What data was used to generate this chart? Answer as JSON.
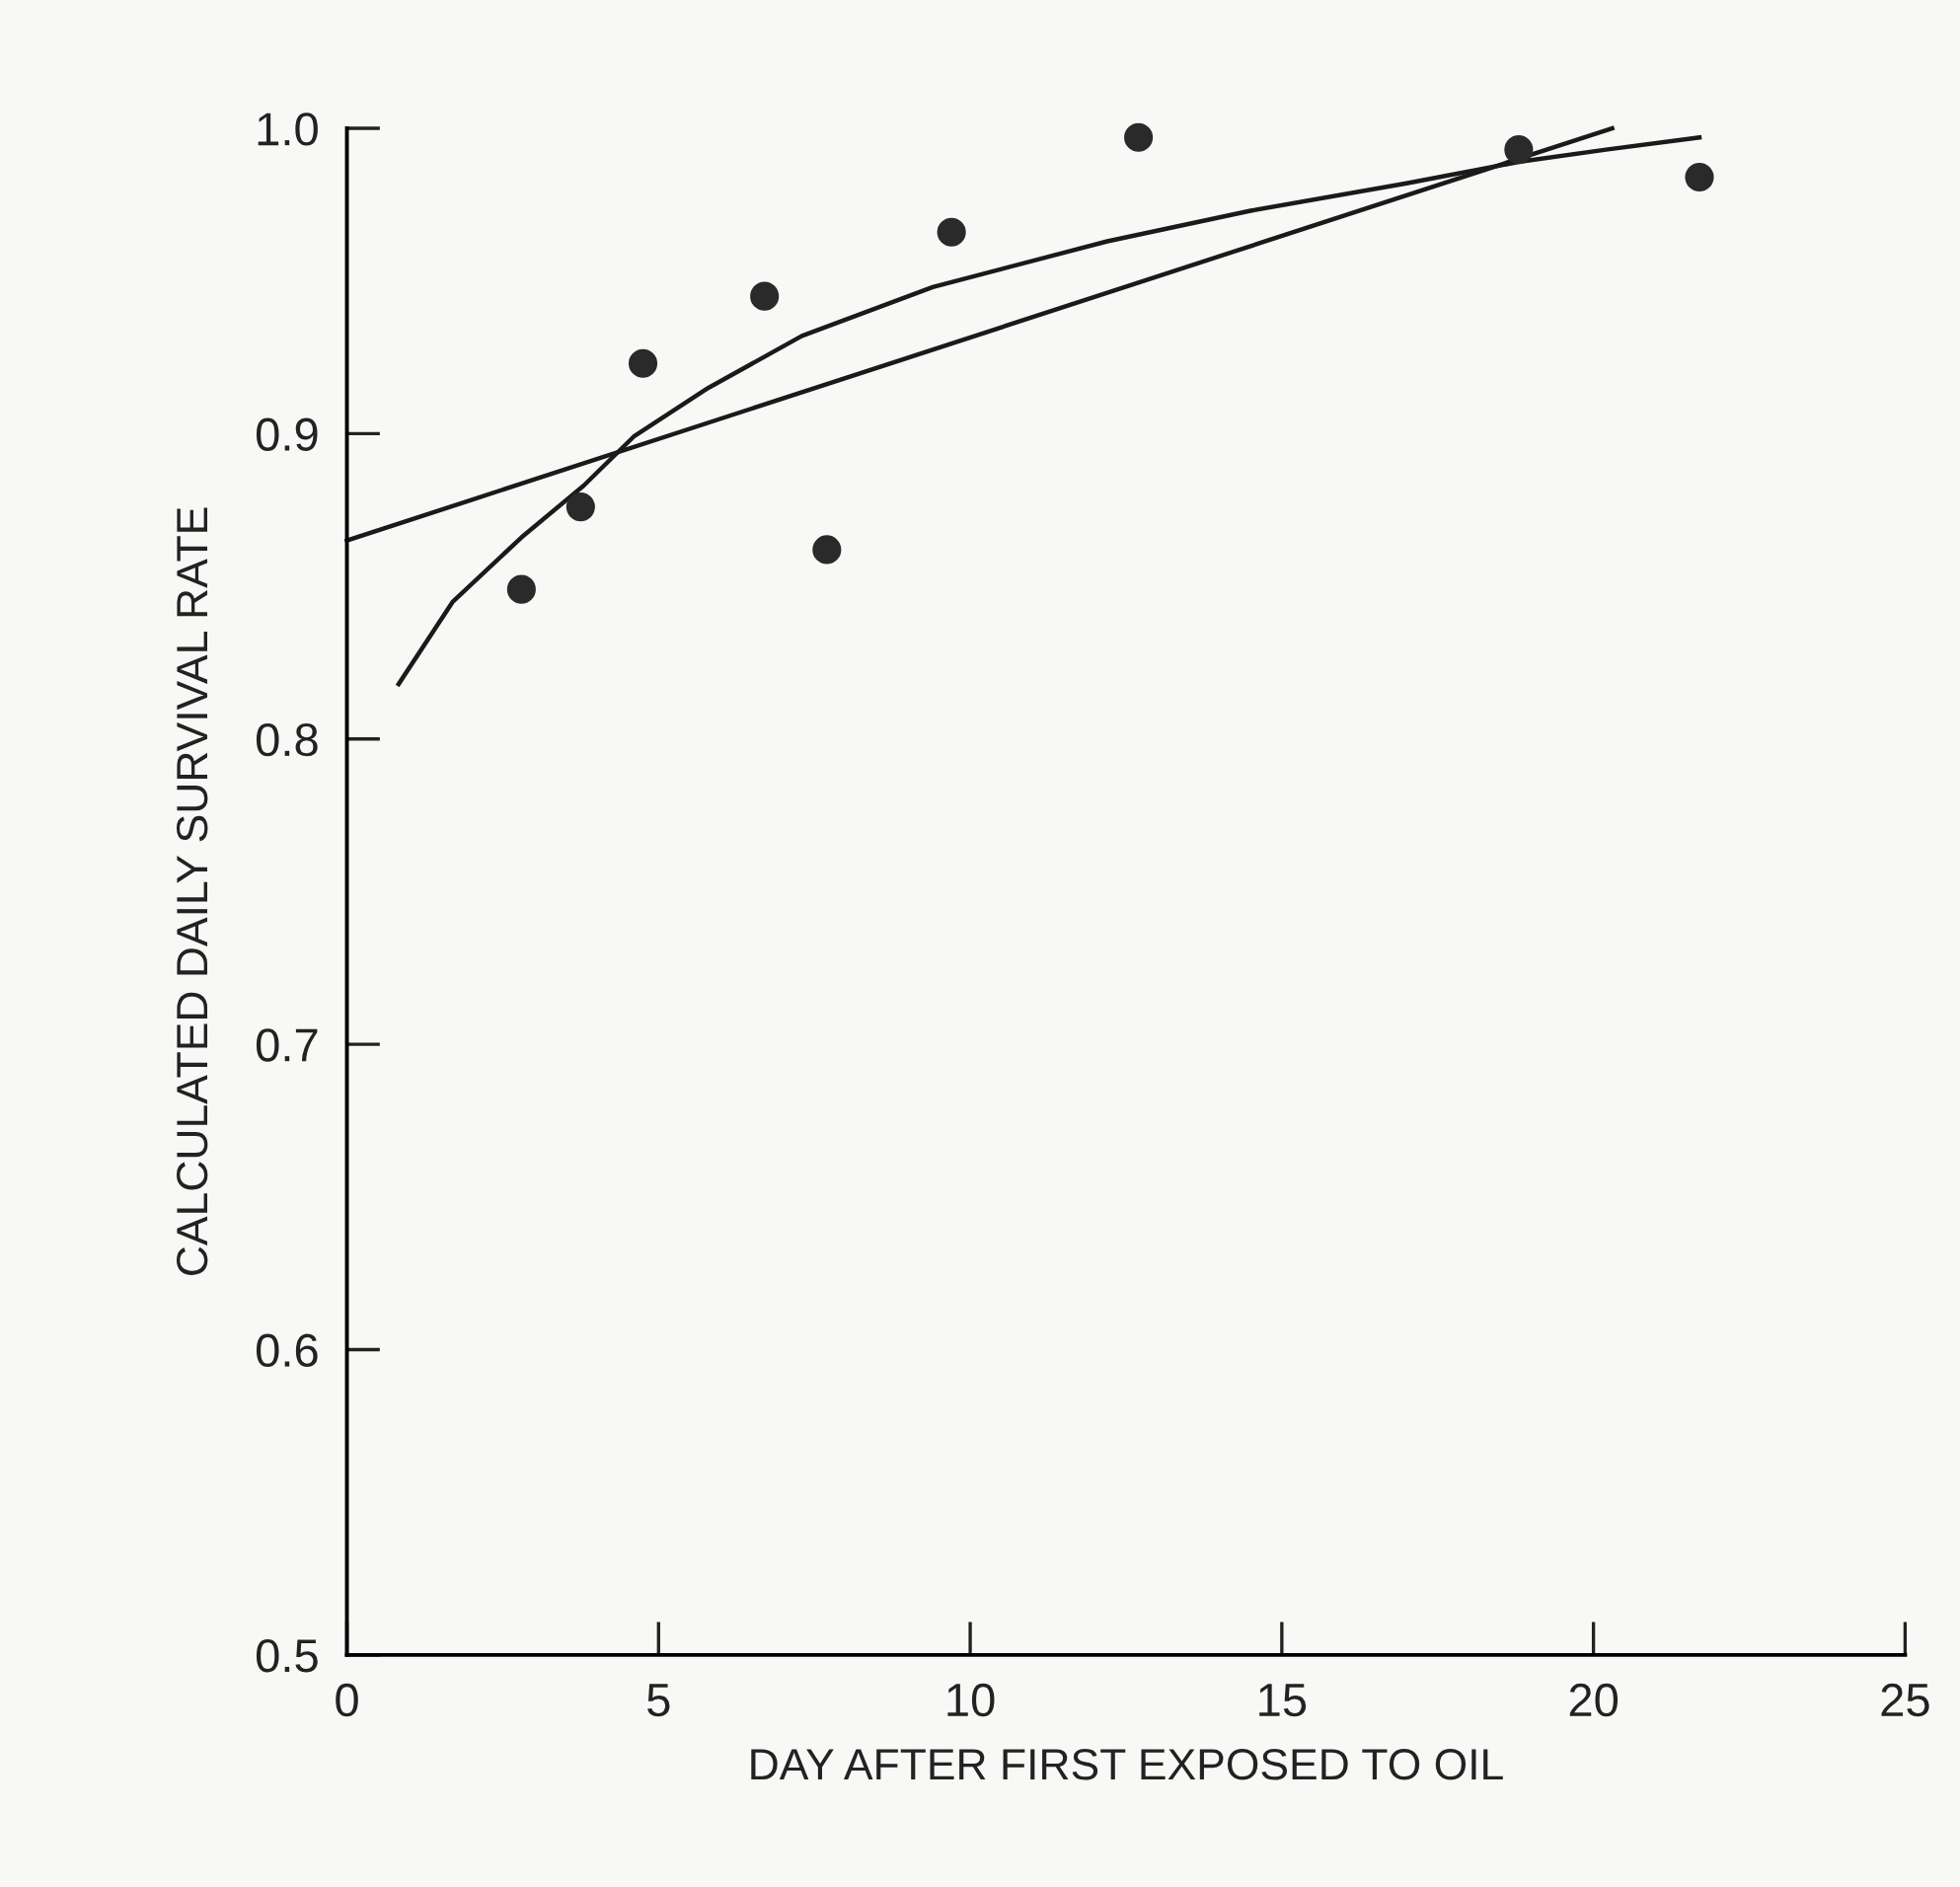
{
  "chart_data": {
    "type": "scatter",
    "xlabel": "DAY AFTER FIRST EXPOSED TO OIL",
    "ylabel": "CALCULATED DAILY SURVIVAL RATE",
    "xlim": [
      0,
      25
    ],
    "xticks": [
      0,
      5,
      10,
      15,
      20,
      25
    ],
    "ylim": [
      0.5,
      1.0
    ],
    "yticks": [
      0.5,
      0.6,
      0.7,
      0.8,
      0.9,
      {
        "value": 1.0,
        "label": "1.0"
      }
    ],
    "grid": false,
    "legend": false,
    "series": [
      {
        "color": "#2a2a2a",
        "marker": "circle",
        "x": [
          2.8,
          3.75,
          4.75,
          6.7,
          7.7,
          9.7,
          12.7,
          18.8,
          21.7
        ],
        "values": [
          0.849,
          0.876,
          0.923,
          0.945,
          0.862,
          0.966,
          0.997,
          0.993,
          0.984
        ]
      },
      {
        "type": "line",
        "color": "#1a1a1a",
        "line_style": "solid",
        "x": [
          0,
          20.3
        ],
        "values": [
          0.865,
          1.0
        ]
      },
      {
        "type": "line",
        "color": "#1a1a1a",
        "line_style": "solid",
        "x": [
          0.83,
          1.7,
          2.8,
          3.8,
          4.6,
          5.8,
          7.3,
          9.4,
          12.2,
          14.5,
          17.0,
          18.8,
          20.2,
          21.7
        ],
        "values": [
          0.818,
          0.845,
          0.866,
          0.883,
          0.899,
          0.915,
          0.932,
          0.948,
          0.963,
          0.973,
          0.982,
          0.989,
          0.993,
          0.997
        ]
      }
    ]
  }
}
